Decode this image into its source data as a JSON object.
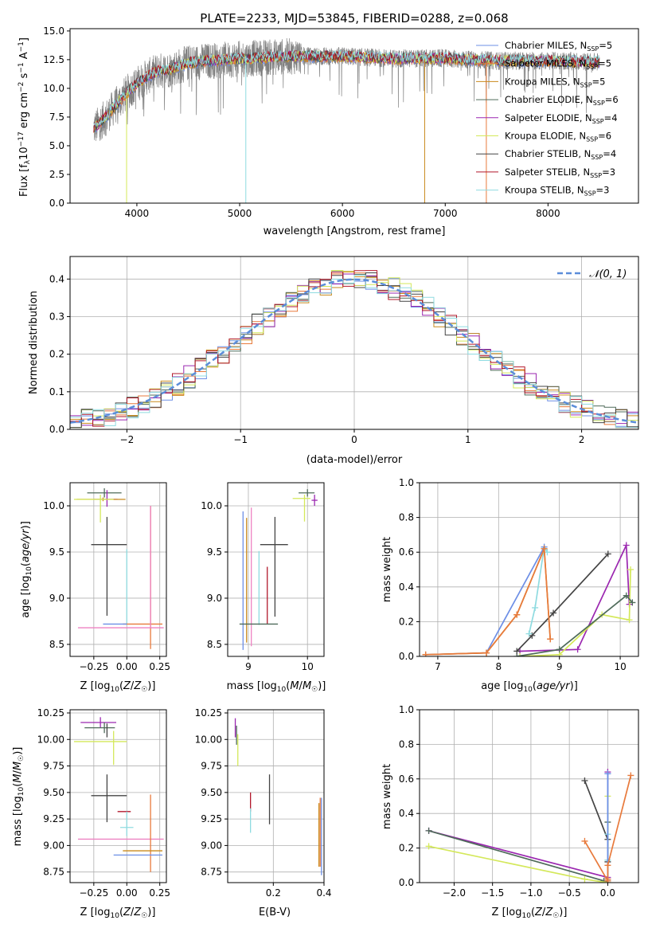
{
  "chart_data": [
    {
      "id": "spectrum",
      "type": "line",
      "title": "PLATE=2233, MJD=53845, FIBERID=0288, z=0.068",
      "xlabel": "wavelength [Angstrom, rest frame]",
      "ylabel": "Flux [fλ10⁻¹⁷ erg cm⁻² s⁻¹ A⁻¹]",
      "xlim": [
        3350,
        8880
      ],
      "ylim": [
        0,
        15.2
      ],
      "xticks": [
        "4000",
        "5000",
        "6000",
        "7000",
        "8000"
      ],
      "yticks": [
        "0.0",
        "2.5",
        "5.0",
        "7.5",
        "10.0",
        "12.5",
        "15.0"
      ],
      "grid": false,
      "legend_position": "upper-right",
      "legend": [
        {
          "name": "Chabrier MILES, NSSP=5",
          "label": "Chabrier MILES, N",
          "sub": "SSP",
          "tail": "=5",
          "color": "#6d8fe6"
        },
        {
          "name": "Salpeter MILES, NSSP=5",
          "label": "Salpeter MILES, N",
          "sub": "SSP",
          "tail": "=5",
          "color": "#e87a3c"
        },
        {
          "name": "Kroupa MILES, NSSP=5",
          "label": "Kroupa MILES, N",
          "sub": "SSP",
          "tail": "=5",
          "color": "#c98a1c"
        },
        {
          "name": "Chabrier ELODIE, NSSP=6",
          "label": "Chabrier ELODIE, N",
          "sub": "SSP",
          "tail": "=6",
          "color": "#4f6b5a"
        },
        {
          "name": "Salpeter ELODIE, NSSP=4",
          "label": "Salpeter ELODIE, N",
          "sub": "SSP",
          "tail": "=4",
          "color": "#9b27b0"
        },
        {
          "name": "Kroupa ELODIE, NSSP=6",
          "label": "Kroupa ELODIE, N",
          "sub": "SSP",
          "tail": "=6",
          "color": "#d4e85a"
        },
        {
          "name": "Chabrier STELIB, NSSP=4",
          "label": "Chabrier STELIB, N",
          "sub": "SSP",
          "tail": "=4",
          "color": "#444444"
        },
        {
          "name": "Salpeter STELIB, NSSP=3",
          "label": "Salpeter STELIB, N",
          "sub": "SSP",
          "tail": "=3",
          "color": "#b2182b"
        },
        {
          "name": "Kroupa STELIB, NSSP=3",
          "label": "Kroupa STELIB, N",
          "sub": "SSP",
          "tail": "=3",
          "color": "#8fdbe0"
        }
      ],
      "data_color": "#808080",
      "model_continuum": {
        "x": [
          3580,
          3700,
          3800,
          3900,
          4000,
          4100,
          4200,
          4300,
          4500,
          4700,
          4900,
          5100,
          5500,
          6000,
          6500,
          7000,
          7500,
          8000,
          8500
        ],
        "y": [
          6.5,
          7.5,
          8.6,
          9.6,
          10.4,
          11.0,
          11.5,
          11.6,
          12.2,
          12.4,
          12.5,
          12.6,
          12.8,
          12.8,
          12.6,
          12.6,
          12.4,
          12.4,
          12.3
        ]
      },
      "spikes": [
        {
          "x": 3900,
          "y": 0
        },
        {
          "x": 5060,
          "y": 0
        },
        {
          "x": 6800,
          "y": 0
        },
        {
          "x": 7400,
          "y": 0
        }
      ]
    },
    {
      "id": "residuals",
      "type": "histogram",
      "xlabel": "(data-model)/error",
      "ylabel": "Normed distribution",
      "xlim": [
        -2.5,
        2.5
      ],
      "ylim": [
        0,
        0.46
      ],
      "xticks": [
        "−2",
        "−1",
        "0",
        "1",
        "2"
      ],
      "yticks": [
        "0.0",
        "0.1",
        "0.2",
        "0.3",
        "0.4"
      ],
      "grid": true,
      "legend_position": "upper-right",
      "legend_label": "𝒩(0, 1)",
      "gaussian_color": "#5b8dd9",
      "bin_width": 0.1
    },
    {
      "id": "age-vs-z",
      "type": "errorbar",
      "xlabel": "Z [log₁₀(Z/Z☉)]",
      "ylabel": "age  [log₁₀(age/yr)]",
      "xlim": [
        -0.43,
        0.3
      ],
      "ylim": [
        8.37,
        10.25
      ],
      "xticks": [
        "−0.25",
        "0.00",
        "0.25"
      ],
      "yticks": [
        "8.5",
        "9.0",
        "9.5",
        "10.0"
      ],
      "grid": true,
      "points": [
        {
          "color": "#4f6b5a",
          "x": -0.17,
          "xerr": [
            0.13,
            0.13
          ],
          "y": 10.14,
          "yerr": [
            0.05,
            0.05
          ]
        },
        {
          "color": "#9b27b0",
          "x": -0.15,
          "xerr": [
            0.1,
            0.08
          ],
          "y": 10.07,
          "yerr": [
            0.08,
            0.1
          ]
        },
        {
          "color": "#c98a1c",
          "x": -0.18,
          "xerr": [
            0.2,
            0.17
          ],
          "y": 10.07,
          "yerr": [
            0.02,
            0.02
          ]
        },
        {
          "color": "#d4e85a",
          "x": -0.2,
          "xerr": [
            0.2,
            0.1
          ],
          "y": 10.07,
          "yerr": [
            0.25,
            0.05
          ]
        },
        {
          "color": "#444444",
          "x": -0.15,
          "xerr": [
            0.12,
            0.15
          ],
          "y": 9.58,
          "yerr": [
            0.77,
            0.3
          ]
        },
        {
          "color": "#b2182b",
          "x": -0.15,
          "xerr": [
            0.0,
            0.0
          ],
          "y": 9.58,
          "yerr": [
            0.0,
            0.0
          ]
        },
        {
          "color": "#8fdbe0",
          "x": 0.0,
          "xerr": [
            0.0,
            0.0
          ],
          "y": 8.71,
          "yerr": [
            0.0,
            0.82
          ]
        },
        {
          "color": "#e87a3c",
          "x": 0.18,
          "xerr": [
            0.0,
            0.0
          ],
          "y": 8.72,
          "yerr": [
            0.27,
            1.28
          ]
        },
        {
          "color": "#e87a3c",
          "x": 0.05,
          "xerr": [
            0.08,
            0.22
          ],
          "y": 8.72,
          "yerr": [
            0.0,
            0.0
          ]
        },
        {
          "color": "#6d8fe6",
          "x": 0.0,
          "xerr": [
            0.18,
            0.0
          ],
          "y": 8.72,
          "yerr": [
            0.0,
            0.0
          ]
        },
        {
          "color": "#ee82c2",
          "x": -0.05,
          "xerr": [
            0.32,
            0.33
          ],
          "y": 8.68,
          "yerr": [
            0.0,
            0.0
          ]
        },
        {
          "color": "#ee82c2",
          "x": 0.18,
          "xerr": [
            0.0,
            0.0
          ],
          "y": 8.68,
          "yerr": [
            0.0,
            1.32
          ]
        }
      ]
    },
    {
      "id": "age-vs-mass",
      "type": "errorbar",
      "xlabel": "mass [log₁₀(M/M☉)]",
      "ylabel": "",
      "xlim": [
        8.65,
        10.28
      ],
      "ylim": [
        8.37,
        10.25
      ],
      "xticks": [
        "9",
        "10"
      ],
      "yticks": [
        "8.5",
        "9.0",
        "9.5",
        "10.0"
      ],
      "grid": true,
      "points": [
        {
          "color": "#4f6b5a",
          "x": 10.0,
          "xerr": [
            0.15,
            0.12
          ],
          "y": 10.14,
          "yerr": [
            0.04,
            0.04
          ]
        },
        {
          "color": "#9b27b0",
          "x": 10.12,
          "xerr": [
            0.05,
            0.05
          ],
          "y": 10.06,
          "yerr": [
            0.06,
            0.06
          ]
        },
        {
          "color": "#d4e85a",
          "x": 9.95,
          "xerr": [
            0.2,
            0.1
          ],
          "y": 10.08,
          "yerr": [
            0.25,
            0.04
          ]
        },
        {
          "color": "#444444",
          "x": 9.45,
          "xerr": [
            0.25,
            0.22
          ],
          "y": 9.58,
          "yerr": [
            0.78,
            0.3
          ]
        },
        {
          "color": "#6d8fe6",
          "x": 8.91,
          "xerr": [
            0.0,
            0.0
          ],
          "y": 8.72,
          "yerr": [
            0.28,
            1.22
          ]
        },
        {
          "color": "#c98a1c",
          "x": 8.97,
          "xerr": [
            0.0,
            0.0
          ],
          "y": 8.72,
          "yerr": [
            0.2,
            1.15
          ]
        },
        {
          "color": "#ee82c2",
          "x": 9.05,
          "xerr": [
            0.0,
            0.0
          ],
          "y": 8.68,
          "yerr": [
            0.2,
            1.3
          ]
        },
        {
          "color": "#8fdbe0",
          "x": 9.18,
          "xerr": [
            0.0,
            0.0
          ],
          "y": 8.71,
          "yerr": [
            0.0,
            0.8
          ]
        },
        {
          "color": "#b2182b",
          "x": 9.32,
          "xerr": [
            0.0,
            0.0
          ],
          "y": 8.72,
          "yerr": [
            0.0,
            0.62
          ]
        },
        {
          "color": "#4f6b5a",
          "x": 9.2,
          "xerr": [
            0.35,
            0.3
          ],
          "y": 8.72,
          "yerr": [
            0.0,
            0.0
          ]
        }
      ]
    },
    {
      "id": "weight-vs-age",
      "type": "line",
      "xlabel": "age  [log₁₀(age/yr)]",
      "ylabel": "mass weight",
      "xlim": [
        6.7,
        10.3
      ],
      "ylim": [
        0,
        1.0
      ],
      "xticks": [
        "7",
        "8",
        "9",
        "10"
      ],
      "yticks": [
        "0.0",
        "0.2",
        "0.4",
        "0.6",
        "0.8",
        "1.0"
      ],
      "grid": true,
      "series": [
        {
          "color": "#9b27b0",
          "x": [
            8.35,
            9.3,
            10.1,
            10.15
          ],
          "y": [
            0.03,
            0.04,
            0.64,
            0.3
          ]
        },
        {
          "color": "#d4e85a",
          "x": [
            8.35,
            9.0,
            9.7,
            10.15,
            10.17
          ],
          "y": [
            0.0,
            0.01,
            0.24,
            0.21,
            0.5
          ]
        },
        {
          "color": "#4f6b5a",
          "x": [
            8.3,
            9.0,
            10.1,
            10.2
          ],
          "y": [
            0.0,
            0.04,
            0.35,
            0.31
          ]
        },
        {
          "color": "#444444",
          "x": [
            8.3,
            8.55,
            8.9,
            9.8
          ],
          "y": [
            0.03,
            0.12,
            0.25,
            0.59
          ]
        },
        {
          "color": "#8fdbe0",
          "x": [
            8.5,
            8.6,
            8.75,
            8.8
          ],
          "y": [
            0.13,
            0.28,
            0.63,
            0.6
          ]
        },
        {
          "color": "#6d8fe6",
          "x": [
            6.8,
            7.8,
            8.75
          ],
          "y": [
            0.01,
            0.02,
            0.63
          ]
        },
        {
          "color": "#c98a1c",
          "x": [
            6.8,
            7.8,
            8.3,
            8.75,
            8.85
          ],
          "y": [
            0.01,
            0.02,
            0.24,
            0.62,
            0.1
          ]
        },
        {
          "color": "#e87a3c",
          "x": [
            6.8,
            7.8,
            8.3,
            8.75,
            8.85
          ],
          "y": [
            0.01,
            0.02,
            0.24,
            0.62,
            0.1
          ]
        }
      ]
    },
    {
      "id": "mass-vs-z",
      "type": "errorbar",
      "xlabel": "Z [log₁₀(Z/Z☉)]",
      "ylabel": "mass [log₁₀(M/M☉)]",
      "xlim": [
        -0.43,
        0.3
      ],
      "ylim": [
        8.65,
        10.28
      ],
      "xticks": [
        "−0.25",
        "0.00",
        "0.25"
      ],
      "yticks": [
        "8.75",
        "9.00",
        "9.25",
        "9.50",
        "9.75",
        "10.00",
        "10.25"
      ],
      "grid": true,
      "points": [
        {
          "color": "#9b27b0",
          "x": -0.2,
          "xerr": [
            0.15,
            0.12
          ],
          "y": 10.16,
          "yerr": [
            0.05,
            0.05
          ]
        },
        {
          "color": "#4f6b5a",
          "x": -0.17,
          "xerr": [
            0.15,
            0.08
          ],
          "y": 10.11,
          "yerr": [
            0.05,
            0.05
          ]
        },
        {
          "color": "#444444",
          "x": -0.15,
          "xerr": [
            0.0,
            0.0
          ],
          "y": 10.1,
          "yerr": [
            0.08,
            0.05
          ]
        },
        {
          "color": "#d4e85a",
          "x": -0.1,
          "xerr": [
            0.3,
            0.1
          ],
          "y": 9.98,
          "yerr": [
            0.22,
            0.1
          ]
        },
        {
          "color": "#444444",
          "x": -0.15,
          "xerr": [
            0.12,
            0.15
          ],
          "y": 9.47,
          "yerr": [
            0.25,
            0.2
          ]
        },
        {
          "color": "#b2182b",
          "x": -0.02,
          "xerr": [
            0.05,
            0.05
          ],
          "y": 9.32,
          "yerr": [
            0.0,
            0.0
          ]
        },
        {
          "color": "#8fdbe0",
          "x": 0.0,
          "xerr": [
            0.05,
            0.05
          ],
          "y": 9.17,
          "yerr": [
            0.08,
            0.15
          ]
        },
        {
          "color": "#ee82c2",
          "x": -0.05,
          "xerr": [
            0.32,
            0.33
          ],
          "y": 9.06,
          "yerr": [
            0.0,
            0.0
          ]
        },
        {
          "color": "#e87a3c",
          "x": 0.18,
          "xerr": [
            0.0,
            0.0
          ],
          "y": 9.2,
          "yerr": [
            0.45,
            0.28
          ]
        },
        {
          "color": "#c98a1c",
          "x": 0.05,
          "xerr": [
            0.08,
            0.22
          ],
          "y": 8.95,
          "yerr": [
            0.0,
            0.0
          ]
        },
        {
          "color": "#6d8fe6",
          "x": 0.05,
          "xerr": [
            0.15,
            0.22
          ],
          "y": 8.91,
          "yerr": [
            0.0,
            0.0
          ]
        }
      ]
    },
    {
      "id": "mass-vs-ebv",
      "type": "errorbar",
      "xlabel": "E(B-V)",
      "ylabel": "",
      "xlim": [
        0.02,
        0.4
      ],
      "ylim": [
        8.65,
        10.28
      ],
      "xticks": [
        "0.2",
        "0.4"
      ],
      "yticks": [
        "8.75",
        "9.00",
        "9.25",
        "9.50",
        "9.75",
        "10.00",
        "10.25"
      ],
      "grid": true,
      "points": [
        {
          "color": "#9b27b0",
          "x": 0.05,
          "xerr": [
            0.0,
            0.0
          ],
          "y": 10.1,
          "yerr": [
            0.08,
            0.1
          ]
        },
        {
          "color": "#4f6b5a",
          "x": 0.055,
          "xerr": [
            0.0,
            0.0
          ],
          "y": 10.05,
          "yerr": [
            0.1,
            0.08
          ]
        },
        {
          "color": "#d4e85a",
          "x": 0.06,
          "xerr": [
            0.0,
            0.0
          ],
          "y": 9.95,
          "yerr": [
            0.2,
            0.1
          ]
        },
        {
          "color": "#b2182b",
          "x": 0.11,
          "xerr": [
            0.0,
            0.0
          ],
          "y": 9.4,
          "yerr": [
            0.08,
            0.1
          ]
        },
        {
          "color": "#8fdbe0",
          "x": 0.11,
          "xerr": [
            0.0,
            0.0
          ],
          "y": 9.25,
          "yerr": [
            0.13,
            0.1
          ]
        },
        {
          "color": "#444444",
          "x": 0.185,
          "xerr": [
            0.0,
            0.0
          ],
          "y": 9.45,
          "yerr": [
            0.25,
            0.22
          ]
        },
        {
          "color": "#e87a3c",
          "x": 0.385,
          "xerr": [
            0.0,
            0.0
          ],
          "y": 9.15,
          "yerr": [
            0.35,
            0.3
          ]
        },
        {
          "color": "#6d8fe6",
          "x": 0.39,
          "xerr": [
            0.0,
            0.0
          ],
          "y": 9.1,
          "yerr": [
            0.38,
            0.35
          ]
        },
        {
          "color": "#c98a1c",
          "x": 0.38,
          "xerr": [
            0.0,
            0.0
          ],
          "y": 9.05,
          "yerr": [
            0.25,
            0.35
          ]
        }
      ]
    },
    {
      "id": "weight-vs-z",
      "type": "line",
      "xlabel": "Z [log₁₀(Z/Z☉)]",
      "ylabel": "mass weight",
      "xlim": [
        -2.45,
        0.4
      ],
      "ylim": [
        0,
        1.0
      ],
      "xticks": [
        "−2.0",
        "−1.5",
        "−1.0",
        "−0.5",
        "0.0"
      ],
      "yticks": [
        "0.0",
        "0.2",
        "0.4",
        "0.6",
        "0.8",
        "1.0"
      ],
      "grid": true,
      "series": [
        {
          "color": "#9b27b0",
          "x": [
            -2.33,
            0.0,
            0.0
          ],
          "y": [
            0.3,
            0.03,
            0.64
          ]
        },
        {
          "color": "#4f6b5a",
          "x": [
            -2.33,
            -0.05,
            0.0,
            0.0
          ],
          "y": [
            0.3,
            0.01,
            0.0,
            0.35
          ]
        },
        {
          "color": "#d4e85a",
          "x": [
            -2.33,
            -0.3,
            0.0,
            0.0
          ],
          "y": [
            0.21,
            0.02,
            0.0,
            0.5
          ]
        },
        {
          "color": "#444444",
          "x": [
            -0.3,
            0.0,
            0.0
          ],
          "y": [
            0.59,
            0.25,
            0.12
          ]
        },
        {
          "color": "#8fdbe0",
          "x": [
            0.0,
            0.0,
            0.0
          ],
          "y": [
            0.13,
            0.28,
            0.63
          ]
        },
        {
          "color": "#6d8fe6",
          "x": [
            0.0,
            0.0,
            0.0
          ],
          "y": [
            0.01,
            0.02,
            0.63
          ]
        },
        {
          "color": "#e87a3c",
          "x": [
            -0.3,
            0.0,
            0.0,
            0.0,
            0.3
          ],
          "y": [
            0.24,
            0.01,
            0.02,
            0.1,
            0.62
          ]
        }
      ]
    }
  ]
}
